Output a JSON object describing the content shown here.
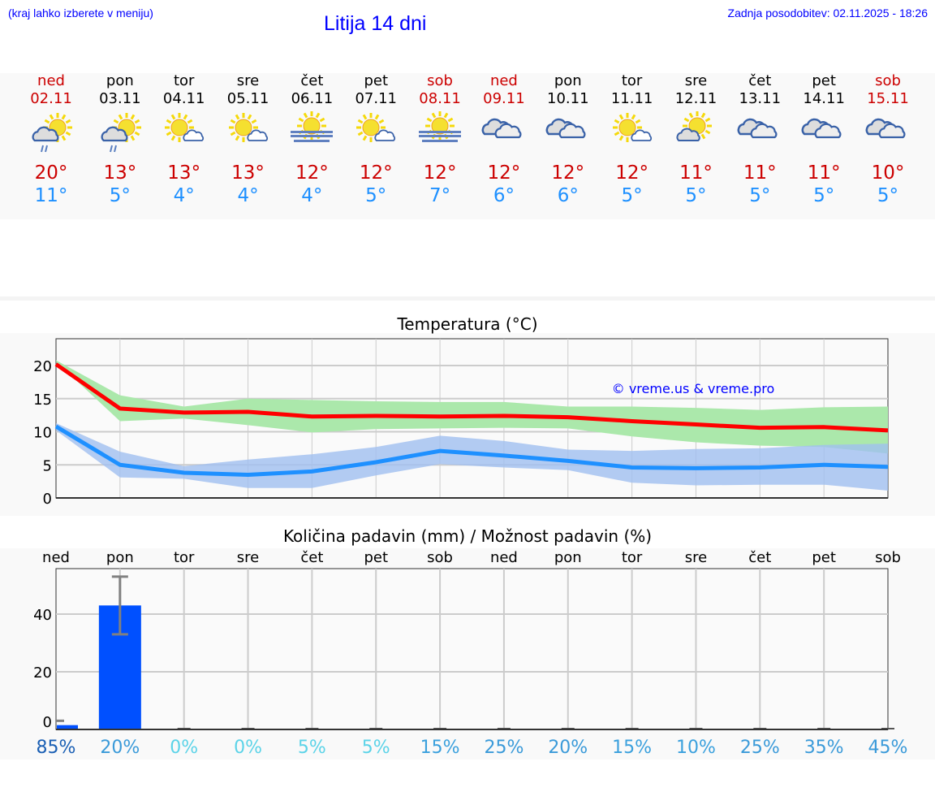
{
  "header": {
    "hint": "(kraj lahko izberete v meniju)",
    "title": "Litija 14 dni",
    "updated": "Zadnja posodobitev: 02.11.2025 - 18:26"
  },
  "days": [
    {
      "name": "ned",
      "date": "02.11",
      "hi": "20°",
      "lo": "11°",
      "weekend": true,
      "icon": "sun-cloud-rain-icon"
    },
    {
      "name": "pon",
      "date": "03.11",
      "hi": "13°",
      "lo": "5°",
      "weekend": false,
      "icon": "sun-cloud-rain-icon"
    },
    {
      "name": "tor",
      "date": "04.11",
      "hi": "13°",
      "lo": "4°",
      "weekend": false,
      "icon": "sun-small-cloud-icon"
    },
    {
      "name": "sre",
      "date": "05.11",
      "hi": "13°",
      "lo": "4°",
      "weekend": false,
      "icon": "sun-small-cloud-icon"
    },
    {
      "name": "čet",
      "date": "06.11",
      "hi": "12°",
      "lo": "4°",
      "weekend": false,
      "icon": "sun-fog-icon"
    },
    {
      "name": "pet",
      "date": "07.11",
      "hi": "12°",
      "lo": "5°",
      "weekend": false,
      "icon": "sun-small-cloud-icon"
    },
    {
      "name": "sob",
      "date": "08.11",
      "hi": "12°",
      "lo": "7°",
      "weekend": true,
      "icon": "sun-fog-icon"
    },
    {
      "name": "ned",
      "date": "09.11",
      "hi": "12°",
      "lo": "6°",
      "weekend": true,
      "icon": "cloudy-icon"
    },
    {
      "name": "pon",
      "date": "10.11",
      "hi": "12°",
      "lo": "6°",
      "weekend": false,
      "icon": "cloudy-icon"
    },
    {
      "name": "tor",
      "date": "11.11",
      "hi": "12°",
      "lo": "5°",
      "weekend": false,
      "icon": "sun-small-cloud-icon"
    },
    {
      "name": "sre",
      "date": "12.11",
      "hi": "11°",
      "lo": "5°",
      "weekend": false,
      "icon": "sun-cloud-icon"
    },
    {
      "name": "čet",
      "date": "13.11",
      "hi": "11°",
      "lo": "5°",
      "weekend": false,
      "icon": "cloudy-icon"
    },
    {
      "name": "pet",
      "date": "14.11",
      "hi": "11°",
      "lo": "5°",
      "weekend": false,
      "icon": "cloudy-icon"
    },
    {
      "name": "sob",
      "date": "15.11",
      "hi": "10°",
      "lo": "5°",
      "weekend": true,
      "icon": "cloudy-icon"
    }
  ],
  "chart_data": [
    {
      "type": "line",
      "title": "Temperatura (°C)",
      "watermark": "© vreme.us & vreme.pro",
      "ylim": [
        0,
        24
      ],
      "yticks": [
        "0",
        "5",
        "10",
        "15",
        "20"
      ],
      "series": [
        {
          "name": "max",
          "color": "#ff0000",
          "values": [
            20.2,
            13.5,
            12.9,
            13,
            12.3,
            12.4,
            12.3,
            12.4,
            12.2,
            11.6,
            11.1,
            10.6,
            10.7,
            10.2
          ],
          "band": {
            "color": "#abe8ab",
            "upper": [
              20.8,
              15.5,
              13.8,
              15,
              14.8,
              14.6,
              14.5,
              14.5,
              13.8,
              13.8,
              13.6,
              13.3,
              13.7,
              13.8
            ],
            "lower": [
              20.6,
              11.6,
              12,
              11,
              9.9,
              10.4,
              10.5,
              10.6,
              10.5,
              9.3,
              8.4,
              7.9,
              7.7,
              6.7
            ]
          }
        },
        {
          "name": "min",
          "color": "#1e90ff",
          "values": [
            10.8,
            5,
            3.8,
            3.5,
            4,
            5.4,
            7.1,
            6.4,
            5.6,
            4.6,
            4.5,
            4.6,
            5,
            4.7
          ],
          "band": {
            "color": "#a0bff0",
            "upper": [
              11.3,
              7,
              4.8,
              5.8,
              6.6,
              7.7,
              9.4,
              8.6,
              7.3,
              7.1,
              7.4,
              7.5,
              8,
              8.2
            ],
            "lower": [
              10.2,
              3.1,
              2.9,
              1.5,
              1.5,
              3.4,
              5.1,
              4.6,
              4.2,
              2.3,
              1.9,
              2,
              2,
              1.1
            ]
          }
        }
      ]
    },
    {
      "type": "bar",
      "title": "Količina padavin (mm) / Možnost padavin (%)",
      "ylim": [
        -3,
        56
      ],
      "yticks": [
        "0",
        "20",
        "40"
      ],
      "categories": [
        "ned",
        "pon",
        "tor",
        "sre",
        "čet",
        "pet",
        "sob",
        "ned",
        "pon",
        "tor",
        "sre",
        "čet",
        "pet",
        "sob"
      ],
      "values": [
        1.5,
        43,
        0,
        0,
        0,
        0,
        0,
        0,
        0,
        0,
        0,
        0,
        0,
        0
      ],
      "err_low": [
        1.5,
        33,
        0,
        0,
        0,
        0,
        0,
        0,
        0,
        0,
        0,
        0,
        0,
        0
      ],
      "err_high": [
        3,
        53,
        0,
        0,
        0,
        0,
        0,
        0,
        0,
        0,
        0,
        0,
        0,
        0
      ],
      "probability": [
        "85%",
        "20%",
        "0%",
        "0%",
        "5%",
        "5%",
        "15%",
        "25%",
        "20%",
        "15%",
        "10%",
        "25%",
        "35%",
        "45%"
      ],
      "prob_colors": [
        "#1a5fb4",
        "#3a9ad9",
        "#5bd3e8",
        "#5bd3e8",
        "#5bd3e8",
        "#5bd3e8",
        "#3aa0dd",
        "#3a9ad9",
        "#3a9ad9",
        "#3aa0dd",
        "#3aa0dd",
        "#3a9ad9",
        "#3a9ad9",
        "#3a9ad9"
      ],
      "bar_color": "#0050ff"
    }
  ]
}
